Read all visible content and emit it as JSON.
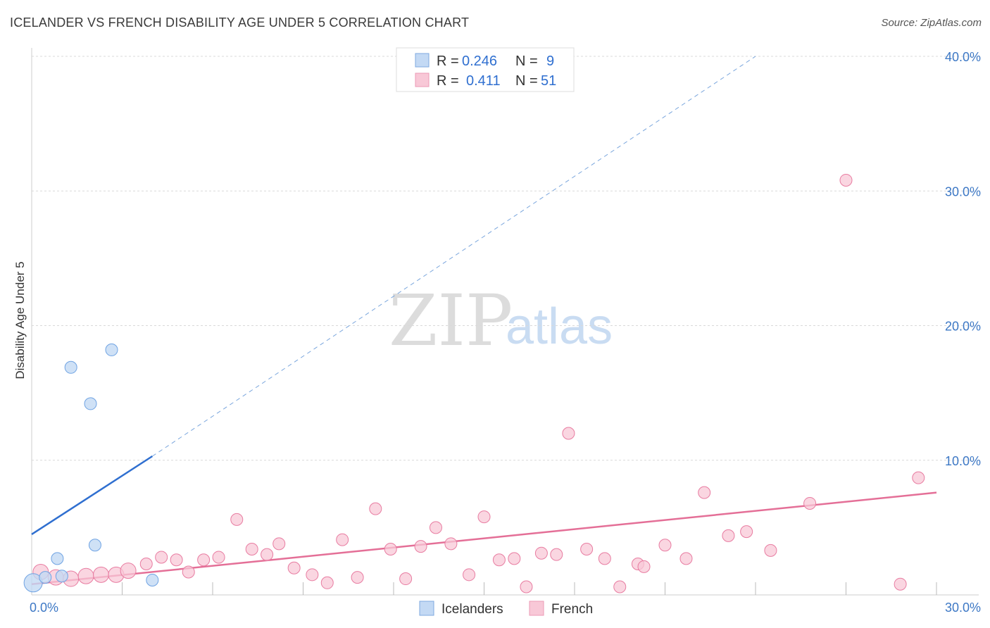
{
  "header": {
    "title": "ICELANDER VS FRENCH DISABILITY AGE UNDER 5 CORRELATION CHART",
    "source": "Source: ZipAtlas.com"
  },
  "watermark": {
    "zip": "ZIP",
    "atlas": "atlas"
  },
  "legend": {
    "rows": [
      {
        "r_label": "R =",
        "r_value": "0.246",
        "n_label": "N =",
        "n_value": "9",
        "color": "#a9c8ef"
      },
      {
        "r_label": "R =",
        "r_value": "0.411",
        "n_label": "N =",
        "n_value": "51",
        "color": "#f5b8cb"
      }
    ]
  },
  "bottom_legend": {
    "items": [
      {
        "label": "Icelanders",
        "color": "#a9c8ef"
      },
      {
        "label": "French",
        "color": "#f5b8cb"
      }
    ]
  },
  "chart_data": {
    "type": "scatter",
    "title": "ICELANDER VS FRENCH DISABILITY AGE UNDER 5 CORRELATION CHART",
    "xlabel": "",
    "ylabel": "Disability Age Under 5",
    "xlim": [
      0,
      30
    ],
    "ylim": [
      0,
      40
    ],
    "x_tick_labels": [
      "0.0%",
      "30.0%"
    ],
    "y_ticks": [
      10,
      20,
      30,
      40
    ],
    "y_tick_labels": [
      "10.0%",
      "20.0%",
      "30.0%",
      "40.0%"
    ],
    "series": [
      {
        "name": "Icelanders",
        "color": "#6fa3e3",
        "fill": "#c3d9f4",
        "points": [
          [
            0.05,
            0.9
          ],
          [
            0.45,
            1.3
          ],
          [
            0.85,
            2.7
          ],
          [
            1.0,
            1.4
          ],
          [
            1.3,
            16.9
          ],
          [
            1.95,
            14.2
          ],
          [
            2.1,
            3.7
          ],
          [
            2.65,
            18.2
          ],
          [
            4.0,
            1.1
          ]
        ],
        "trend": {
          "x": [
            0,
            4.0
          ],
          "y": [
            4.5,
            10.3
          ],
          "extended_x": [
            4.0,
            24.0
          ],
          "extended_y": [
            10.3,
            40.0
          ]
        }
      },
      {
        "name": "French",
        "color": "#e87ca1",
        "fill": "#f8c8d7",
        "points": [
          [
            0.3,
            1.7
          ],
          [
            0.8,
            1.3
          ],
          [
            1.3,
            1.2
          ],
          [
            1.8,
            1.4
          ],
          [
            2.3,
            1.5
          ],
          [
            2.8,
            1.5
          ],
          [
            3.2,
            1.8
          ],
          [
            3.8,
            2.3
          ],
          [
            4.3,
            2.8
          ],
          [
            4.8,
            2.6
          ],
          [
            5.2,
            1.7
          ],
          [
            5.7,
            2.6
          ],
          [
            6.2,
            2.8
          ],
          [
            6.8,
            5.6
          ],
          [
            7.3,
            3.4
          ],
          [
            7.8,
            3.0
          ],
          [
            8.2,
            3.8
          ],
          [
            8.7,
            2.0
          ],
          [
            9.3,
            1.5
          ],
          [
            9.8,
            0.9
          ],
          [
            10.3,
            4.1
          ],
          [
            10.8,
            1.3
          ],
          [
            11.4,
            6.4
          ],
          [
            11.9,
            3.4
          ],
          [
            12.4,
            1.2
          ],
          [
            12.9,
            3.6
          ],
          [
            13.4,
            5.0
          ],
          [
            13.9,
            3.8
          ],
          [
            14.5,
            1.5
          ],
          [
            15.0,
            5.8
          ],
          [
            15.5,
            2.6
          ],
          [
            16.0,
            2.7
          ],
          [
            16.4,
            0.6
          ],
          [
            16.9,
            3.1
          ],
          [
            17.4,
            3.0
          ],
          [
            17.8,
            12.0
          ],
          [
            18.4,
            3.4
          ],
          [
            19.0,
            2.7
          ],
          [
            19.5,
            0.6
          ],
          [
            20.1,
            2.3
          ],
          [
            20.3,
            2.1
          ],
          [
            21.0,
            3.7
          ],
          [
            21.7,
            2.7
          ],
          [
            22.3,
            7.6
          ],
          [
            23.1,
            4.4
          ],
          [
            23.7,
            4.7
          ],
          [
            24.5,
            3.3
          ],
          [
            25.8,
            6.8
          ],
          [
            27.0,
            30.8
          ],
          [
            28.8,
            0.8
          ],
          [
            29.4,
            8.7
          ]
        ],
        "trend": {
          "x": [
            0,
            30
          ],
          "y": [
            0.8,
            7.6
          ]
        }
      }
    ]
  }
}
